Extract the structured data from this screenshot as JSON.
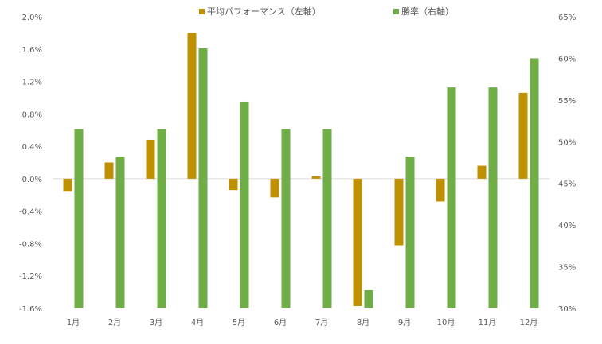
{
  "chart_data": {
    "type": "bar",
    "categories": [
      "1月",
      "2月",
      "3月",
      "4月",
      "5月",
      "6月",
      "7月",
      "8月",
      "9月",
      "10月",
      "11月",
      "12月"
    ],
    "series": [
      {
        "name": "平均パフォーマンス（左軸）",
        "axis": "left",
        "unit": "percent",
        "values": [
          -0.16,
          0.2,
          0.48,
          1.8,
          -0.14,
          -0.23,
          0.03,
          -1.57,
          -0.83,
          -0.28,
          0.16,
          1.06
        ],
        "color": "#BF9000"
      },
      {
        "name": "勝率（右軸）",
        "axis": "right",
        "unit": "percent",
        "values": [
          51.5,
          48.2,
          51.5,
          61.2,
          54.8,
          51.5,
          51.5,
          32.2,
          48.2,
          56.5,
          56.5,
          60.0
        ],
        "color": "#70AD47"
      }
    ],
    "y_left": {
      "ylim": [
        -1.6,
        2.0
      ],
      "ticks": [
        2.0,
        1.6,
        1.2,
        0.8,
        0.4,
        0.0,
        -0.4,
        -0.8,
        -1.2,
        -1.6
      ],
      "tick_labels": [
        "2.0%",
        "1.6%",
        "1.2%",
        "0.8%",
        "0.4%",
        "0.0%",
        "-0.4%",
        "-0.8%",
        "-1.2%",
        "-1.6%"
      ]
    },
    "y_right": {
      "ylim": [
        30,
        65
      ],
      "ticks": [
        65,
        60,
        55,
        50,
        45,
        40,
        35,
        30
      ],
      "tick_labels": [
        "65%",
        "60%",
        "55%",
        "50%",
        "45%",
        "40%",
        "35%",
        "30%"
      ]
    },
    "title": "",
    "xlabel": "",
    "ylabel": "",
    "legend_position": "top",
    "grid": false,
    "zero_line_color": "#D9D9D9"
  }
}
